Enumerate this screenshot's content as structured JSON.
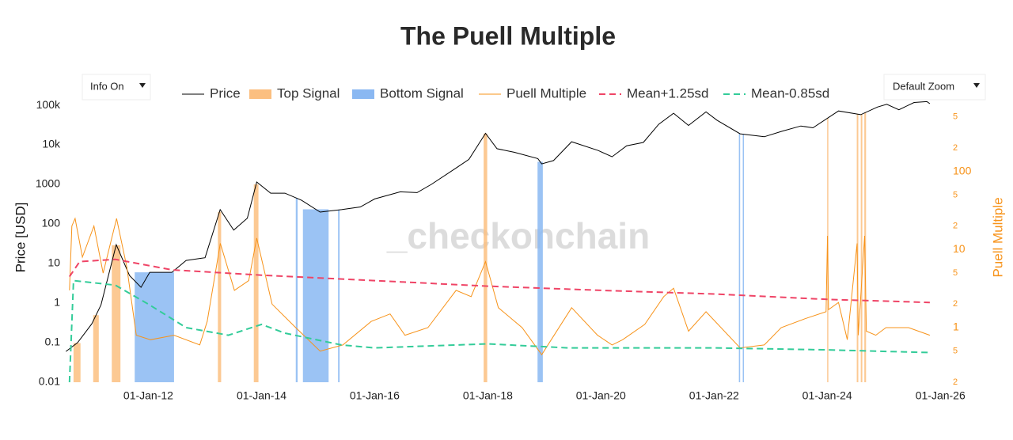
{
  "chart_data": {
    "type": "line",
    "title": "The Puell Multiple",
    "watermark": "_checkonchain",
    "buttons": [
      "Info On",
      "Default Zoom"
    ],
    "ylabel": "Price [USD]",
    "y2label": "Puell Multiple",
    "y2label_color": "#f7931a",
    "log_y": true,
    "log_y2": true,
    "xlim": [
      "2010-07-01",
      "2026-01-10"
    ],
    "xticks": [
      {
        "value": "2012-01-01",
        "label": "01-Jan-12"
      },
      {
        "value": "2014-01-01",
        "label": "01-Jan-14"
      },
      {
        "value": "2016-01-01",
        "label": "01-Jan-16"
      },
      {
        "value": "2018-01-01",
        "label": "01-Jan-18"
      },
      {
        "value": "2020-01-01",
        "label": "01-Jan-20"
      },
      {
        "value": "2022-01-01",
        "label": "01-Jan-22"
      },
      {
        "value": "2024-01-01",
        "label": "01-Jan-24"
      },
      {
        "value": "2026-01-01",
        "label": "01-Jan-26"
      }
    ],
    "ylim": [
      0.01,
      200000
    ],
    "yticks": [
      0.01,
      0.1,
      1,
      10,
      100,
      1000,
      {
        "value": 10000,
        "label": "10k"
      },
      {
        "value": 100000,
        "label": "100k"
      }
    ],
    "y2lim": [
      0.2,
      1000
    ],
    "y2ticks": [
      {
        "value": 500,
        "label": "5"
      },
      {
        "value": 200,
        "label": "2"
      },
      100,
      {
        "value": 50,
        "label": "5"
      },
      {
        "value": 20,
        "label": "2"
      },
      10,
      {
        "value": 5,
        "label": "5"
      },
      {
        "value": 2,
        "label": "2"
      },
      1,
      {
        "value": 0.5,
        "label": "5"
      },
      {
        "value": 0.2,
        "label": "2"
      }
    ],
    "signals": [
      {
        "name": "Top Signal",
        "color": "#fbbf80",
        "periods": [
          [
            "2010-09-05",
            "2010-10-20"
          ],
          [
            "2011-01-10",
            "2011-02-15"
          ],
          [
            "2011-05-10",
            "2011-07-05"
          ],
          [
            "2013-03-25",
            "2013-04-15"
          ],
          [
            "2013-11-12",
            "2013-12-12"
          ],
          [
            "2017-12-05",
            "2017-12-28"
          ],
          [
            "2024-01-01",
            "2024-01-06"
          ],
          [
            "2024-07-10",
            "2024-07-20"
          ],
          [
            "2024-08-05",
            "2024-08-15"
          ],
          [
            "2024-08-28",
            "2024-09-08"
          ]
        ]
      },
      {
        "name": "Bottom Signal",
        "color": "#8ab8f2",
        "periods": [
          [
            "2011-10-05",
            "2012-06-15"
          ],
          [
            "2014-08-10",
            "2014-08-22"
          ],
          [
            "2014-09-25",
            "2015-03-10"
          ],
          [
            "2015-05-10",
            "2015-05-20"
          ],
          [
            "2018-11-18",
            "2018-12-22"
          ],
          [
            "2022-06-10",
            "2022-06-18"
          ],
          [
            "2022-07-05",
            "2022-07-12"
          ]
        ]
      }
    ],
    "series": [
      {
        "name": "Price",
        "color": "#000000",
        "axis": "y",
        "dash": false,
        "width": 1,
        "x": [
          "2010-07-18",
          "2010-10-01",
          "2011-01-01",
          "2011-03-01",
          "2011-06-08",
          "2011-09-01",
          "2011-11-15",
          "2012-01-10",
          "2012-06-01",
          "2012-09-01",
          "2013-01-01",
          "2013-04-09",
          "2013-07-05",
          "2013-10-01",
          "2013-12-01",
          "2014-03-01",
          "2014-06-01",
          "2014-09-15",
          "2015-01-14",
          "2015-06-01",
          "2015-10-01",
          "2016-01-01",
          "2016-06-15",
          "2016-10-01",
          "2017-01-01",
          "2017-06-10",
          "2017-09-01",
          "2017-12-17",
          "2018-03-01",
          "2018-06-20",
          "2018-11-20",
          "2018-12-15",
          "2019-03-01",
          "2019-06-26",
          "2019-12-15",
          "2020-03-13",
          "2020-06-15",
          "2020-10-01",
          "2021-01-08",
          "2021-04-14",
          "2021-07-20",
          "2021-11-10",
          "2022-01-20",
          "2022-06-18",
          "2022-11-21",
          "2023-03-15",
          "2023-07-15",
          "2023-10-01",
          "2024-03-14",
          "2024-08-05",
          "2024-11-20",
          "2025-01-20",
          "2025-04-08",
          "2025-07-15",
          "2025-10-06",
          "2025-10-25"
        ],
        "values": [
          0.06,
          0.1,
          0.3,
          0.9,
          30,
          5,
          2.5,
          6,
          6,
          12,
          14,
          230,
          70,
          140,
          1150,
          600,
          600,
          400,
          200,
          230,
          270,
          430,
          650,
          620,
          1000,
          2600,
          4300,
          19500,
          8000,
          6500,
          4500,
          3300,
          4000,
          12000,
          7200,
          5000,
          9500,
          11500,
          33000,
          63000,
          31000,
          68000,
          42000,
          19000,
          16000,
          22000,
          30000,
          27000,
          72000,
          58000,
          90000,
          106000,
          77000,
          118000,
          124000,
          110000
        ]
      },
      {
        "name": "Puell Multiple",
        "color": "#f7931a",
        "axis": "y2",
        "dash": false,
        "width": 1,
        "x": [
          "2010-08-10",
          "2010-08-25",
          "2010-09-15",
          "2010-11-01",
          "2011-01-15",
          "2011-03-15",
          "2011-06-10",
          "2011-08-15",
          "2011-10-15",
          "2012-01-15",
          "2012-06-15",
          "2012-11-28",
          "2013-01-15",
          "2013-04-10",
          "2013-07-10",
          "2013-10-10",
          "2013-12-01",
          "2014-03-10",
          "2014-08-10",
          "2015-01-14",
          "2015-06-10",
          "2015-12-10",
          "2016-04-10",
          "2016-07-15",
          "2016-12-10",
          "2017-06-10",
          "2017-09-15",
          "2017-12-17",
          "2018-03-10",
          "2018-08-10",
          "2018-12-15",
          "2019-06-26",
          "2019-12-10",
          "2020-03-13",
          "2020-05-20",
          "2020-10-10",
          "2021-02-10",
          "2021-04-14",
          "2021-07-20",
          "2021-11-10",
          "2022-06-18",
          "2022-11-21",
          "2023-03-10",
          "2023-08-10",
          "2023-12-25",
          "2024-01-03",
          "2024-01-10",
          "2024-03-14",
          "2024-05-10",
          "2024-07-12",
          "2024-07-20",
          "2024-08-30",
          "2024-09-10",
          "2024-11-10",
          "2025-01-15",
          "2025-06-10",
          "2025-10-25"
        ],
        "values": [
          3,
          20,
          25,
          8,
          20,
          5,
          25,
          6,
          0.8,
          0.7,
          0.8,
          0.6,
          1.2,
          12,
          3,
          4,
          14,
          2,
          1,
          0.5,
          0.6,
          1.2,
          1.5,
          0.8,
          1,
          3,
          2.5,
          7,
          1.8,
          1,
          0.45,
          1.8,
          0.8,
          0.6,
          0.7,
          1.1,
          2.5,
          3.2,
          0.9,
          1.6,
          0.55,
          0.6,
          1,
          1.3,
          1.6,
          15,
          1.7,
          2.1,
          0.7,
          12,
          0.8,
          15,
          0.9,
          0.8,
          1,
          1,
          0.8
        ]
      },
      {
        "name": "Mean+1.25sd",
        "color": "#ef4466",
        "axis": "y2",
        "dash": true,
        "width": 2,
        "x": [
          "2010-08-10",
          "2010-10-15",
          "2011-06-01",
          "2012-06-01",
          "2014-01-01",
          "2016-01-01",
          "2018-01-01",
          "2020-01-01",
          "2022-01-01",
          "2024-01-01",
          "2025-10-25"
        ],
        "values": [
          4.5,
          7,
          7.5,
          5.5,
          4.7,
          4,
          3.4,
          3,
          2.7,
          2.3,
          2.1
        ]
      },
      {
        "name": "Mean-0.85sd",
        "color": "#33cc99",
        "axis": "y2",
        "dash": true,
        "width": 2,
        "x": [
          "2010-08-10",
          "2010-09-05",
          "2011-06-01",
          "2012-01-01",
          "2012-09-01",
          "2013-06-01",
          "2014-01-01",
          "2014-06-01",
          "2015-06-01",
          "2016-01-01",
          "2018-01-01",
          "2019-06-01",
          "2021-01-01",
          "2022-01-01",
          "2024-01-01",
          "2025-10-25"
        ],
        "values": [
          0.2,
          4,
          3.5,
          2,
          1,
          0.8,
          1.1,
          0.85,
          0.6,
          0.55,
          0.62,
          0.55,
          0.55,
          0.55,
          0.52,
          0.48
        ]
      }
    ]
  }
}
